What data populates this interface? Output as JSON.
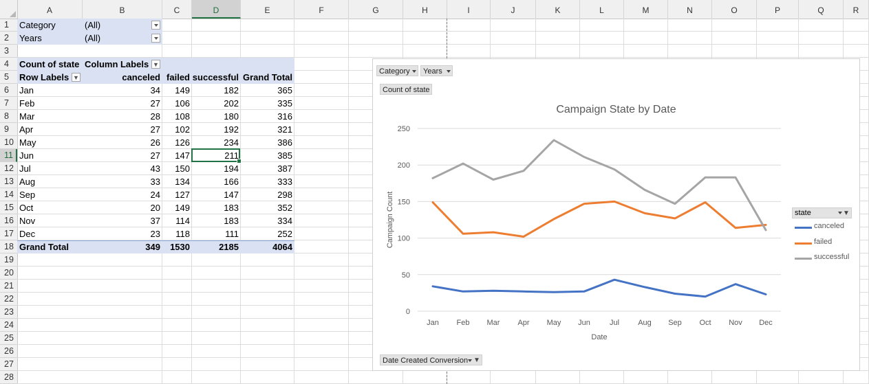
{
  "columns": [
    "A",
    "B",
    "C",
    "D",
    "E",
    "F",
    "G",
    "H",
    "I",
    "J",
    "K",
    "L",
    "M",
    "N",
    "O",
    "P",
    "Q",
    "R"
  ],
  "rows": [
    "1",
    "2",
    "3",
    "4",
    "5",
    "6",
    "7",
    "8",
    "9",
    "10",
    "11",
    "12",
    "13",
    "14",
    "15",
    "16",
    "17",
    "18",
    "19",
    "20",
    "21",
    "22",
    "23",
    "24",
    "25",
    "26",
    "27",
    "28"
  ],
  "selected_column": "D",
  "selected_row": "11",
  "filters": {
    "category_label": "Category",
    "category_value": "(All)",
    "years_label": "Years",
    "years_value": "(All)"
  },
  "pivot": {
    "count_label": "Count of state",
    "column_labels": "Column Labels",
    "row_labels": "Row Labels",
    "headers": [
      "canceled",
      "failed",
      "successful",
      "Grand Total"
    ],
    "rows": [
      {
        "label": "Jan",
        "values": [
          "34",
          "149",
          "182",
          "365"
        ]
      },
      {
        "label": "Feb",
        "values": [
          "27",
          "106",
          "202",
          "335"
        ]
      },
      {
        "label": "Mar",
        "values": [
          "28",
          "108",
          "180",
          "316"
        ]
      },
      {
        "label": "Apr",
        "values": [
          "27",
          "102",
          "192",
          "321"
        ]
      },
      {
        "label": "May",
        "values": [
          "26",
          "126",
          "234",
          "386"
        ]
      },
      {
        "label": "Jun",
        "values": [
          "27",
          "147",
          "211",
          "385"
        ]
      },
      {
        "label": "Jul",
        "values": [
          "43",
          "150",
          "194",
          "387"
        ]
      },
      {
        "label": "Aug",
        "values": [
          "33",
          "134",
          "166",
          "333"
        ]
      },
      {
        "label": "Sep",
        "values": [
          "24",
          "127",
          "147",
          "298"
        ]
      },
      {
        "label": "Oct",
        "values": [
          "20",
          "149",
          "183",
          "352"
        ]
      },
      {
        "label": "Nov",
        "values": [
          "37",
          "114",
          "183",
          "334"
        ]
      },
      {
        "label": "Dec",
        "values": [
          "23",
          "118",
          "111",
          "252"
        ]
      }
    ],
    "grand_total": {
      "label": "Grand Total",
      "values": [
        "349",
        "1530",
        "2185",
        "4064"
      ]
    }
  },
  "chart_buttons": {
    "category": "Category",
    "years": "Years",
    "count_of_state": "Count of state",
    "date_axis_field": "Date Created Conversion",
    "legend_field": "state"
  },
  "chart_data": {
    "type": "line",
    "title": "Campaign State by Date",
    "xlabel": "Date",
    "ylabel": "Campaign Count",
    "categories": [
      "Jan",
      "Feb",
      "Mar",
      "Apr",
      "May",
      "Jun",
      "Jul",
      "Aug",
      "Sep",
      "Oct",
      "Nov",
      "Dec"
    ],
    "ylim": [
      0,
      250
    ],
    "yticks": [
      "0",
      "50",
      "100",
      "150",
      "200",
      "250"
    ],
    "grid": true,
    "legend": "right",
    "series": [
      {
        "name": "canceled",
        "color": "#4472c4",
        "values": [
          34,
          27,
          28,
          27,
          26,
          27,
          43,
          33,
          24,
          20,
          37,
          23
        ]
      },
      {
        "name": "failed",
        "color": "#ed7d31",
        "values": [
          149,
          106,
          108,
          102,
          126,
          147,
          150,
          134,
          127,
          149,
          114,
          118
        ]
      },
      {
        "name": "successful",
        "color": "#a5a5a5",
        "values": [
          182,
          202,
          180,
          192,
          234,
          211,
          194,
          166,
          147,
          183,
          183,
          111
        ]
      }
    ]
  }
}
